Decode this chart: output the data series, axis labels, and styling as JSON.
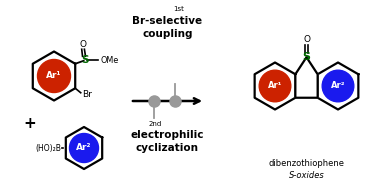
{
  "bg_color": "#ffffff",
  "red_color": "#cc2200",
  "blue_color": "#1a1aee",
  "green_color": "#006600",
  "black_color": "#000000",
  "gray_color": "#999999",
  "ar1_label": "Ar¹",
  "ar2_label": "Ar²",
  "HO2B_label": "(HO)₂B",
  "hex_linewidth": 1.6,
  "arrow_linewidth": 1.8
}
